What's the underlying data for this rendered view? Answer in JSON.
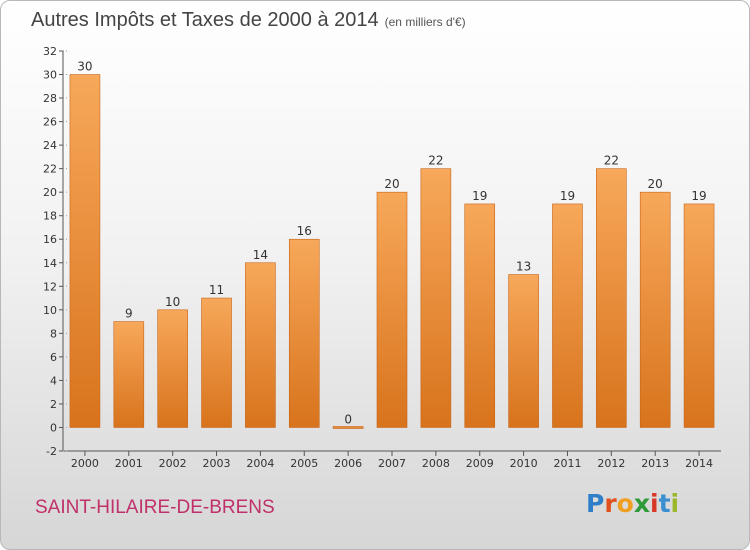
{
  "title": "Autres Impôts et Taxes de 2000 à 2014",
  "subtitle": "(en milliers d'€)",
  "place_name": "SAINT-HILAIRE-DE-BRENS",
  "logo": {
    "text": "Proxiti",
    "letter_colors": [
      "#2f7fc8",
      "#e0501f",
      "#f0a020",
      "#2f9a3a",
      "#d8382a",
      "#3a8fd0",
      "#9ab82a"
    ]
  },
  "colors": {
    "bar_light": "#f7a85a",
    "bar_dark": "#d8731c",
    "axis": "#555555",
    "grid": "#999999"
  },
  "chart_data": {
    "type": "bar",
    "title": "Autres Impôts et Taxes de 2000 à 2014",
    "subtitle": "(en milliers d'€)",
    "categories": [
      "2000",
      "2001",
      "2002",
      "2003",
      "2004",
      "2005",
      "2006",
      "2007",
      "2008",
      "2009",
      "2010",
      "2011",
      "2012",
      "2013",
      "2014"
    ],
    "values": [
      30,
      9,
      10,
      11,
      14,
      16,
      0,
      20,
      22,
      19,
      13,
      19,
      22,
      20,
      19
    ],
    "ylim": [
      -2,
      32
    ],
    "yticks": [
      -2,
      0,
      2,
      4,
      6,
      8,
      10,
      12,
      14,
      16,
      18,
      20,
      22,
      24,
      26,
      28,
      30,
      32
    ],
    "grid": false,
    "legend": "none"
  }
}
